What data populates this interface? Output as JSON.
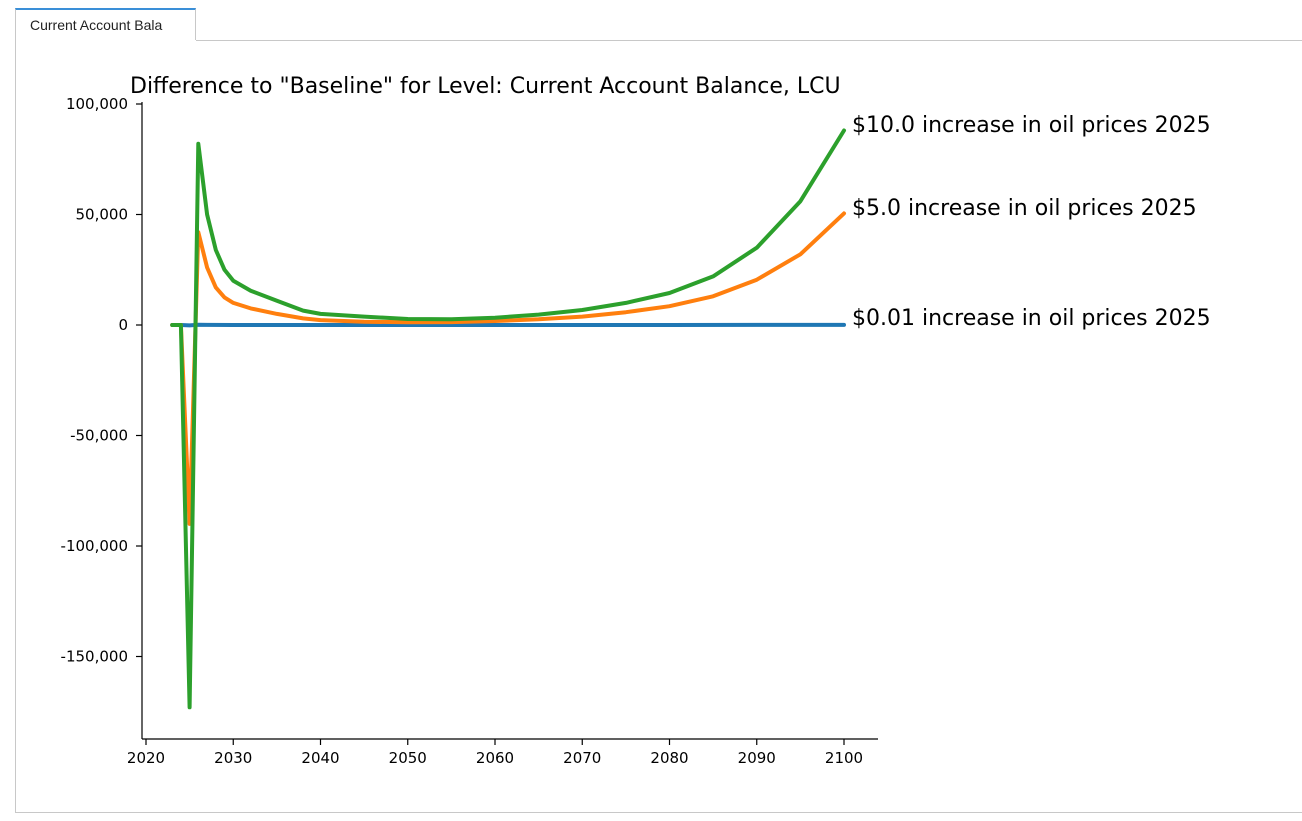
{
  "tab": {
    "label": "Current Account Bala"
  },
  "chart_data": {
    "type": "line",
    "title": "Difference to \"Baseline\" for Level: Current Account Balance, LCU",
    "xlabel": "",
    "ylabel": "",
    "xlim": [
      2019,
      2104
    ],
    "ylim": [
      -185000,
      100000
    ],
    "xticks": [
      2020,
      2030,
      2040,
      2050,
      2060,
      2070,
      2080,
      2090,
      2100
    ],
    "yticks": [
      100000,
      50000,
      0,
      -50000,
      -100000,
      -150000
    ],
    "ytick_labels": [
      "100,000",
      "50,000",
      "0",
      "-50,000",
      "-100,000",
      "-150,000"
    ],
    "xtick_labels": [
      "2020",
      "2030",
      "2040",
      "2050",
      "2060",
      "2070",
      "2080",
      "2090",
      "2100"
    ],
    "grid": false,
    "legend": "end-of-line labels",
    "series": [
      {
        "name": "$0.01 increase in oil prices 2025",
        "color": "#1f77b4",
        "x": [
          2023,
          2024,
          2025,
          2026,
          2027,
          2030,
          2040,
          2050,
          2060,
          2070,
          2080,
          2090,
          2100
        ],
        "y": [
          0,
          0,
          -180,
          85,
          40,
          20,
          5,
          3,
          5,
          8,
          15,
          25,
          50
        ]
      },
      {
        "name": "$5.0 increase in oil prices 2025",
        "color": "#ff7f0e",
        "x": [
          2023,
          2024,
          2025,
          2026,
          2027,
          2028,
          2029,
          2030,
          2032,
          2035,
          2038,
          2040,
          2045,
          2050,
          2055,
          2060,
          2065,
          2070,
          2075,
          2080,
          2085,
          2090,
          2095,
          2100
        ],
        "y": [
          0,
          0,
          -90000,
          42000,
          26000,
          17000,
          12500,
          10000,
          7500,
          5000,
          3000,
          2200,
          1500,
          1200,
          1300,
          1800,
          2600,
          3800,
          5800,
          8500,
          13000,
          20500,
          32000,
          50500
        ]
      },
      {
        "name": "$10.0 increase in oil prices 2025",
        "color": "#2ca02c",
        "x": [
          2023,
          2024,
          2025,
          2026,
          2027,
          2028,
          2029,
          2030,
          2032,
          2035,
          2038,
          2040,
          2045,
          2050,
          2055,
          2060,
          2065,
          2070,
          2075,
          2080,
          2085,
          2090,
          2095,
          2100
        ],
        "y": [
          0,
          0,
          -173000,
          82000,
          50000,
          34000,
          25000,
          20000,
          15500,
          11000,
          6500,
          5000,
          3800,
          2700,
          2600,
          3300,
          4700,
          6800,
          10000,
          14500,
          22000,
          35000,
          56000,
          88000
        ]
      }
    ]
  }
}
